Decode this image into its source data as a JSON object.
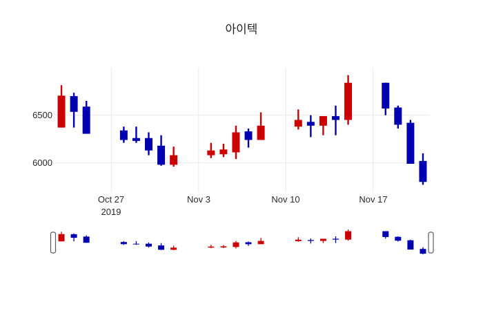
{
  "title": "아이텍",
  "colors": {
    "increasing": "#cc0000",
    "decreasing": "#0000b0",
    "grid": "#e8e8e8",
    "text": "#262626",
    "handle_fill": "#ffffff",
    "handle_border": "#5a5a5a",
    "background": "#ffffff"
  },
  "chart_data": {
    "type": "candlestick",
    "title": "아이텍",
    "xlabel": "",
    "ylabel": "",
    "grid": true,
    "rangeslider": true,
    "y_range": [
      5700,
      7005
    ],
    "x_range_dates": [
      "2019-10-22T12:00:00Z",
      "2019-11-21T12:00:00Z"
    ],
    "y_ticks": [
      {
        "label": "6500",
        "value": 6500
      },
      {
        "label": "6000",
        "value": 6000
      }
    ],
    "x_ticks": [
      {
        "label": "Oct 27",
        "sub": "2019",
        "date": "2019-10-27"
      },
      {
        "label": "Nov 3",
        "sub": "",
        "date": "2019-11-03"
      },
      {
        "label": "Nov 10",
        "sub": "",
        "date": "2019-11-10"
      },
      {
        "label": "Nov 17",
        "sub": "",
        "date": "2019-11-17"
      }
    ],
    "candles": [
      {
        "date": "2019-10-23",
        "open": 6370,
        "high": 6815,
        "low": 6370,
        "close": 6705
      },
      {
        "date": "2019-10-24",
        "open": 6700,
        "high": 6735,
        "low": 6370,
        "close": 6535
      },
      {
        "date": "2019-10-25",
        "open": 6590,
        "high": 6650,
        "low": 6305,
        "close": 6305
      },
      {
        "date": "2019-10-28",
        "open": 6340,
        "high": 6380,
        "low": 6210,
        "close": 6240
      },
      {
        "date": "2019-10-29",
        "open": 6260,
        "high": 6380,
        "low": 6210,
        "close": 6230
      },
      {
        "date": "2019-10-30",
        "open": 6260,
        "high": 6320,
        "low": 6080,
        "close": 6130
      },
      {
        "date": "2019-10-31",
        "open": 6180,
        "high": 6290,
        "low": 5970,
        "close": 5980
      },
      {
        "date": "2019-11-01",
        "open": 5980,
        "high": 6170,
        "low": 5960,
        "close": 6080
      },
      {
        "date": "2019-11-04",
        "open": 6080,
        "high": 6210,
        "low": 6050,
        "close": 6130
      },
      {
        "date": "2019-11-05",
        "open": 6090,
        "high": 6200,
        "low": 6060,
        "close": 6140
      },
      {
        "date": "2019-11-06",
        "open": 6110,
        "high": 6390,
        "low": 6040,
        "close": 6320
      },
      {
        "date": "2019-11-07",
        "open": 6330,
        "high": 6360,
        "low": 6160,
        "close": 6240
      },
      {
        "date": "2019-11-08",
        "open": 6240,
        "high": 6530,
        "low": 6240,
        "close": 6390
      },
      {
        "date": "2019-11-11",
        "open": 6380,
        "high": 6560,
        "low": 6350,
        "close": 6450
      },
      {
        "date": "2019-11-12",
        "open": 6430,
        "high": 6500,
        "low": 6270,
        "close": 6390
      },
      {
        "date": "2019-11-13",
        "open": 6390,
        "high": 6490,
        "low": 6290,
        "close": 6490
      },
      {
        "date": "2019-11-14",
        "open": 6490,
        "high": 6600,
        "low": 6290,
        "close": 6450
      },
      {
        "date": "2019-11-15",
        "open": 6450,
        "high": 6920,
        "low": 6400,
        "close": 6840
      },
      {
        "date": "2019-11-18",
        "open": 6840,
        "high": 6840,
        "low": 6500,
        "close": 6570
      },
      {
        "date": "2019-11-19",
        "open": 6580,
        "high": 6600,
        "low": 6360,
        "close": 6400
      },
      {
        "date": "2019-11-20",
        "open": 6420,
        "high": 6450,
        "low": 5990,
        "close": 5990
      },
      {
        "date": "2019-11-21",
        "open": 6020,
        "high": 6100,
        "low": 5770,
        "close": 5800
      }
    ]
  }
}
